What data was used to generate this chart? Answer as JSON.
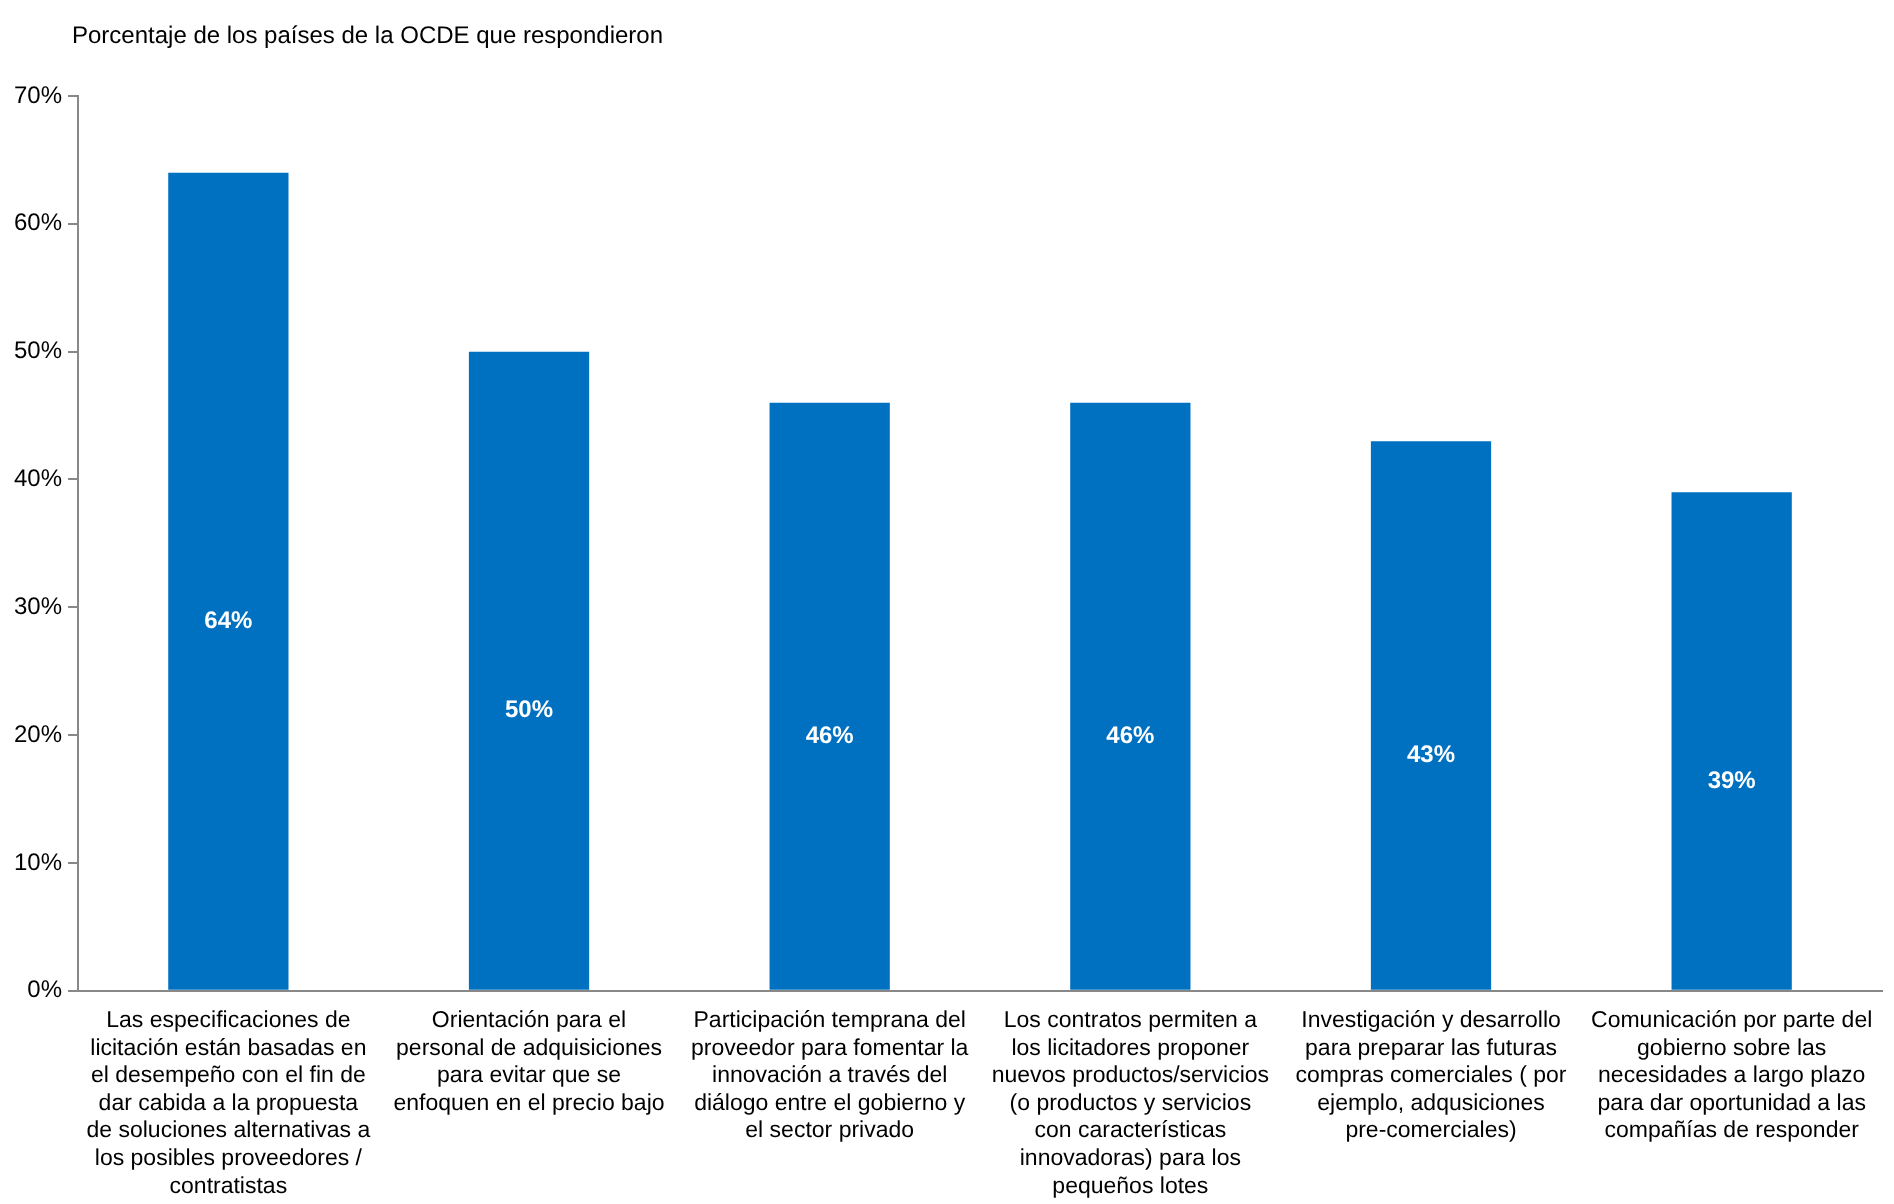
{
  "chart_data": {
    "type": "bar",
    "ylabel": "Porcentaje de los países de la OCDE que respondieron",
    "categories": [
      "Las especificaciones de licitación están basadas en el desempeño con el fin de dar cabida a la propuesta de soluciones alternativas a los posibles proveedores / contratistas",
      "Orientación para el personal de adquisiciones para evitar que se enfoquen en el precio bajo",
      "Participación temprana del proveedor para fomentar la innovación a través del diálogo entre el gobierno y el sector privado",
      "Los contratos permiten a los licitadores proponer nuevos productos/servicios (o productos y servicios con características innovadoras) para los pequeños lotes",
      "Investigación y desarrollo para preparar las futuras compras comerciales ( por ejemplo, adqusiciones pre-comerciales)",
      "Comunicación por parte del gobierno sobre las necesidades a largo plazo para dar oportunidad a las compañías de responder"
    ],
    "values": [
      64,
      50,
      46,
      46,
      43,
      39
    ],
    "color": "#0070c0",
    "value_labels": [
      "64%",
      "50%",
      "46%",
      "46%",
      "43%",
      "39%"
    ],
    "ylim": [
      0,
      70
    ],
    "yticks": [
      {
        "value": 0,
        "label": "0%"
      },
      {
        "value": 10,
        "label": "10%"
      },
      {
        "value": 20,
        "label": "20%"
      },
      {
        "value": 30,
        "label": "30%"
      },
      {
        "value": 40,
        "label": "40%"
      },
      {
        "value": 50,
        "label": "50%"
      },
      {
        "value": 60,
        "label": "60%"
      },
      {
        "value": 70,
        "label": "70%"
      }
    ],
    "grid": false,
    "legend": false
  }
}
